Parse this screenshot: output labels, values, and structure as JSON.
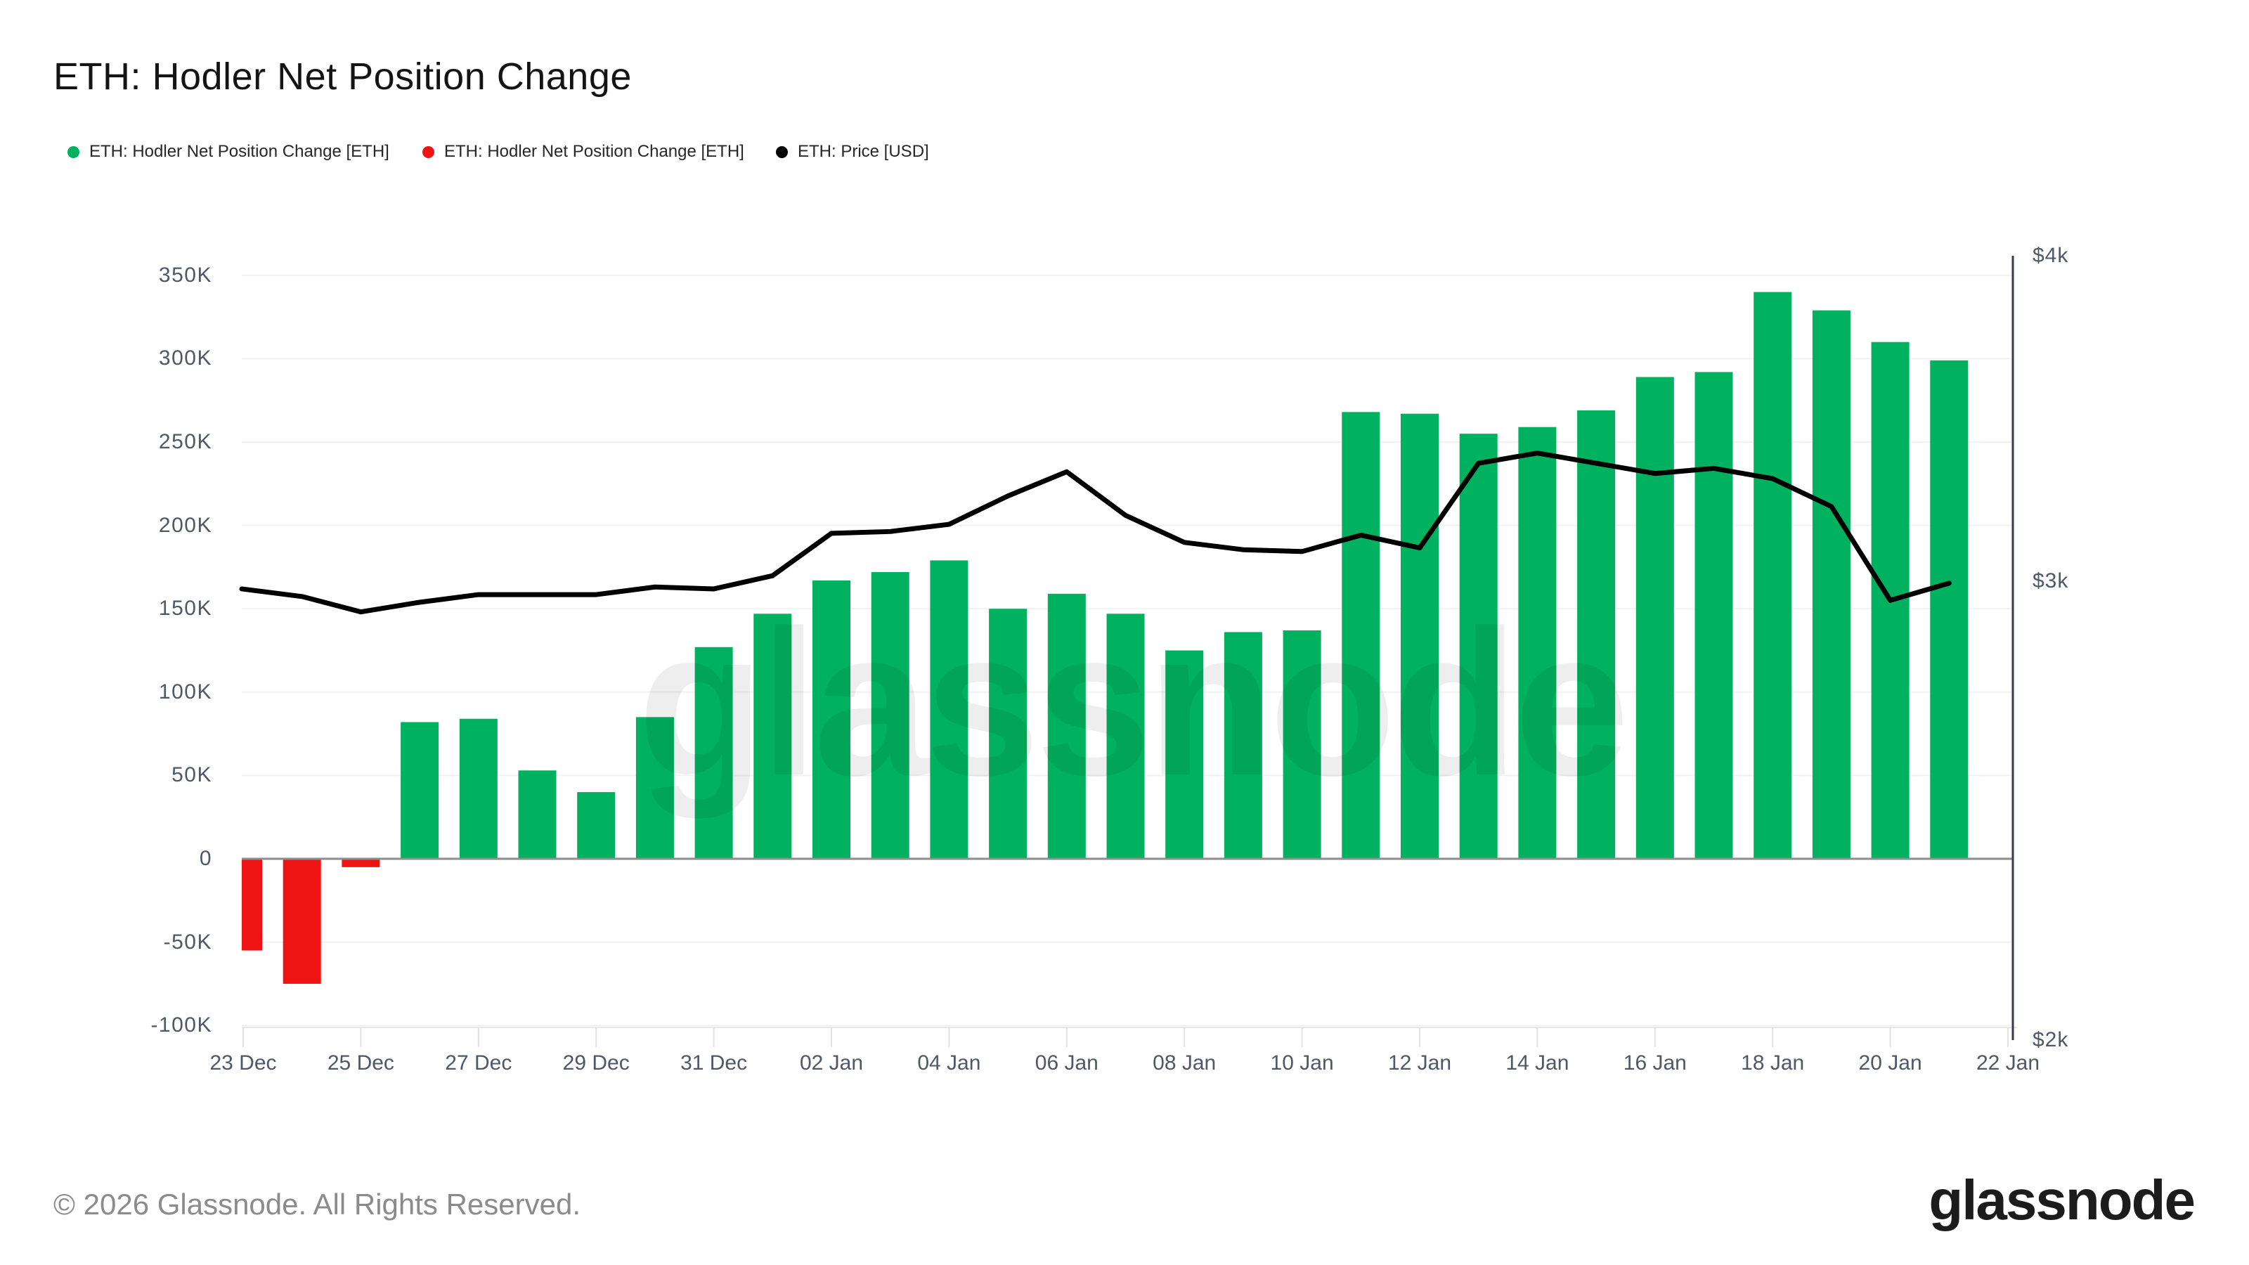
{
  "header": {
    "title": "ETH: Hodler Net Position Change"
  },
  "legend": {
    "items": [
      {
        "label": "ETH: Hodler Net Position Change [ETH]",
        "color": "#00b15f"
      },
      {
        "label": "ETH: Hodler Net Position Change [ETH]",
        "color": "#ee1414"
      },
      {
        "label": "ETH: Price [USD]",
        "color": "#000000"
      }
    ]
  },
  "chart_data": {
    "type": "combo",
    "categories": [
      "23 Dec",
      "24 Dec",
      "25 Dec",
      "26 Dec",
      "27 Dec",
      "28 Dec",
      "29 Dec",
      "30 Dec",
      "31 Dec",
      "01 Jan",
      "02 Jan",
      "03 Jan",
      "04 Jan",
      "05 Jan",
      "06 Jan",
      "07 Jan",
      "08 Jan",
      "09 Jan",
      "10 Jan",
      "11 Jan",
      "12 Jan",
      "13 Jan",
      "14 Jan",
      "15 Jan",
      "16 Jan",
      "17 Jan",
      "18 Jan",
      "19 Jan",
      "20 Jan",
      "21 Jan"
    ],
    "series": [
      {
        "name": "ETH: Hodler Net Position Change [ETH]",
        "type": "bar",
        "axis": "left",
        "unit": "ETH",
        "values": [
          -55000,
          -75000,
          -5000,
          82000,
          84000,
          53000,
          40000,
          85000,
          127000,
          147000,
          167000,
          172000,
          179000,
          150000,
          159000,
          147000,
          125000,
          136000,
          137000,
          268000,
          267000,
          255000,
          259000,
          269000,
          289000,
          292000,
          340000,
          329000,
          310000,
          299000
        ]
      },
      {
        "name": "ETH: Price [USD]",
        "type": "line",
        "axis": "right",
        "unit": "USD",
        "values": [
          2980,
          2960,
          2920,
          2945,
          2965,
          2965,
          2965,
          2985,
          2980,
          3015,
          3130,
          3135,
          3155,
          3235,
          3305,
          3180,
          3105,
          3085,
          3080,
          3125,
          3090,
          3330,
          3360,
          3330,
          3300,
          3315,
          3285,
          3205,
          2950,
          2995
        ]
      }
    ],
    "left_axis": {
      "tick_labels": [
        "350K",
        "300K",
        "250K",
        "200K",
        "150K",
        "100K",
        "50K",
        "0",
        "-50K",
        "-100K"
      ],
      "tick_values": [
        350000,
        300000,
        250000,
        200000,
        150000,
        100000,
        50000,
        0,
        -50000,
        -100000
      ],
      "range": [
        -100000,
        350000
      ],
      "scale": "linear"
    },
    "right_axis": {
      "tick_labels": [
        "$4k",
        "$3k",
        "$2k"
      ],
      "tick_values": [
        4000,
        3000,
        2000
      ],
      "range": [
        2000,
        4000
      ],
      "scale": "log"
    },
    "x_axis": {
      "tick_labels": [
        "23 Dec",
        "25 Dec",
        "27 Dec",
        "29 Dec",
        "31 Dec",
        "02 Jan",
        "04 Jan",
        "06 Jan",
        "08 Jan",
        "10 Jan",
        "12 Jan",
        "14 Jan",
        "16 Jan",
        "18 Jan",
        "20 Jan",
        "22 Jan"
      ]
    },
    "title": "ETH: Hodler Net Position Change",
    "grid": "horizontal",
    "legend_position": "top-left",
    "bar_positive_color": "#00b15f",
    "bar_negative_color": "#ee1414",
    "line_color": "#000000"
  },
  "watermark": {
    "text": "glassnode"
  },
  "footer": {
    "copyright": "© 2026 Glassnode. All Rights Reserved.",
    "logo_text": "glassnode"
  }
}
